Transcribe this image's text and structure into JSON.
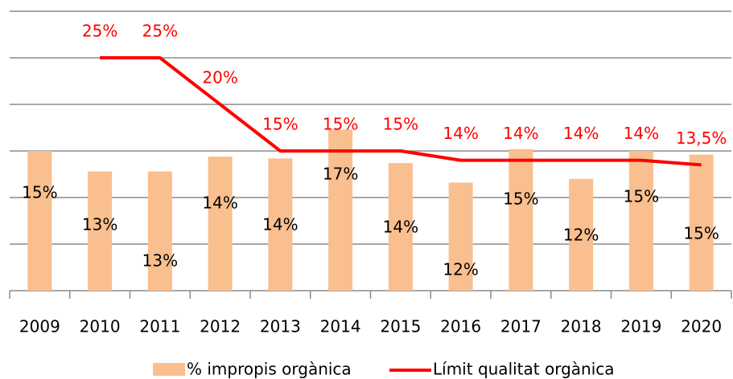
{
  "chart_data": {
    "type": "bar-line",
    "categories": [
      "2009",
      "2010",
      "2011",
      "2012",
      "2013",
      "2014",
      "2015",
      "2016",
      "2017",
      "2018",
      "2019",
      "2020"
    ],
    "series": [
      {
        "name": "% impropis orgànica",
        "type": "bar",
        "color": "#f9bf8f",
        "values": [
          15,
          12.8,
          12.8,
          14.4,
          14.2,
          17.3,
          13.7,
          11.6,
          15.2,
          12,
          15,
          14.6
        ],
        "value_labels": [
          "15%",
          "13%",
          "13%",
          "14%",
          "14%",
          "17%",
          "14%",
          "12%",
          "15%",
          "12%",
          "15%",
          "15%"
        ]
      },
      {
        "name": "Límit qualitat orgànica",
        "type": "line",
        "color": "#ff0000",
        "values": [
          null,
          25,
          25,
          20,
          15,
          15,
          15,
          14,
          14,
          14,
          14,
          13.5
        ],
        "value_labels": [
          null,
          "25%",
          "25%",
          "20%",
          "15%",
          "15%",
          "15%",
          "14%",
          "14%",
          "14%",
          "14%",
          "13,5%"
        ]
      }
    ],
    "ylim": [
      0,
      30
    ],
    "yticks": [
      0,
      5,
      10,
      15,
      20,
      25,
      30
    ],
    "grid": true,
    "legend": "bottom"
  }
}
